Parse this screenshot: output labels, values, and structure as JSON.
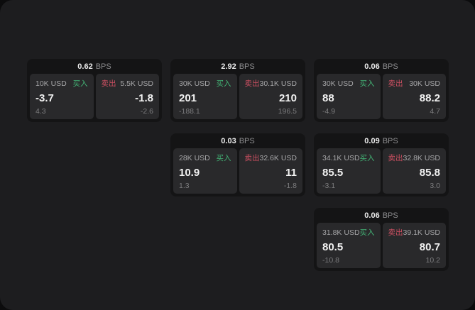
{
  "labels": {
    "bps_unit": "BPS",
    "buy": "买入",
    "sell": "卖出"
  },
  "colors": {
    "buy": "#43b375",
    "sell": "#cd5062",
    "panel_bg": "#1d1d1f",
    "card_bg": "#141415",
    "tile_bg": "#29292b"
  },
  "cards": [
    {
      "row": 1,
      "col": 1,
      "bps": "0.62",
      "buy": {
        "notional": "10K USD",
        "value": "-3.7",
        "sub": "4.3"
      },
      "sell": {
        "notional": "5.5K USD",
        "value": "-1.8",
        "sub": "-2.6"
      }
    },
    {
      "row": 1,
      "col": 2,
      "bps": "2.92",
      "buy": {
        "notional": "30K USD",
        "value": "201",
        "sub": "-188.1"
      },
      "sell": {
        "notional": "30.1K USD",
        "value": "210",
        "sub": "196.5"
      }
    },
    {
      "row": 1,
      "col": 3,
      "bps": "0.06",
      "buy": {
        "notional": "30K USD",
        "value": "88",
        "sub": "-4.9"
      },
      "sell": {
        "notional": "30K USD",
        "value": "88.2",
        "sub": "4.7"
      }
    },
    {
      "row": 2,
      "col": 2,
      "bps": "0.03",
      "buy": {
        "notional": "28K USD",
        "value": "10.9",
        "sub": "1.3"
      },
      "sell": {
        "notional": "32.6K USD",
        "value": "11",
        "sub": "-1.8"
      }
    },
    {
      "row": 2,
      "col": 3,
      "bps": "0.09",
      "buy": {
        "notional": "34.1K USD",
        "value": "85.5",
        "sub": "-3.1"
      },
      "sell": {
        "notional": "32.8K USD",
        "value": "85.8",
        "sub": "3.0"
      }
    },
    {
      "row": 3,
      "col": 3,
      "bps": "0.06",
      "buy": {
        "notional": "31.8K USD",
        "value": "80.5",
        "sub": "-10.8"
      },
      "sell": {
        "notional": "39.1K USD",
        "value": "80.7",
        "sub": "10.2"
      }
    }
  ]
}
